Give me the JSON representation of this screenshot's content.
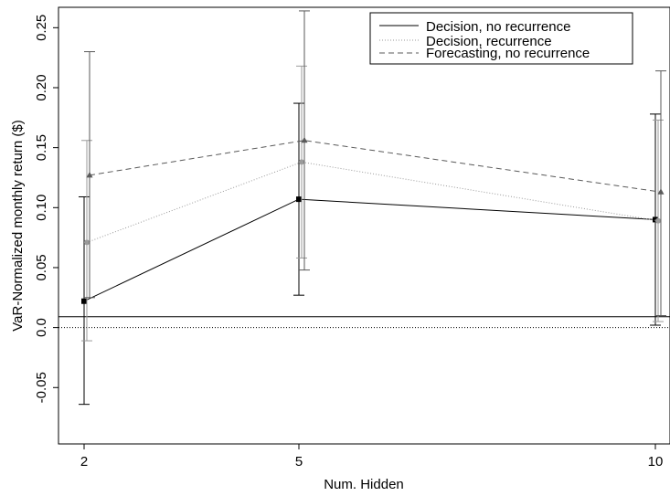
{
  "chart_data": {
    "type": "line",
    "xlabel": "Num. Hidden",
    "ylabel": "VaR-Normalized monthly return ($)",
    "x_ticks": [
      2,
      5,
      10
    ],
    "x_tick_labels": [
      "2",
      "5",
      "10"
    ],
    "y_ticks": [
      -0.05,
      0.0,
      0.05,
      0.1,
      0.15,
      0.2,
      0.25
    ],
    "y_tick_labels": [
      "-0.05",
      "0.0",
      "0.05",
      "0.10",
      "0.15",
      "0.20",
      "0.25"
    ],
    "ylim": [
      -0.097,
      0.267
    ],
    "x_positions": [
      2,
      5,
      10
    ],
    "reference_lines": [
      {
        "y": 0.0,
        "style": "dotted"
      },
      {
        "y": 0.009,
        "style": "solid"
      }
    ],
    "legend_position": "top-right",
    "series": [
      {
        "name": "Decision, no recurrence",
        "style": "solid",
        "color": "#000000",
        "marker": "square",
        "x_offset": 0,
        "values": [
          0.022,
          0.107,
          0.09
        ],
        "lower": [
          -0.064,
          0.027,
          0.002
        ],
        "upper": [
          0.109,
          0.187,
          0.178
        ]
      },
      {
        "name": "Decision, recurrence",
        "style": "dotted",
        "color": "#9a9a9a",
        "marker": "circle",
        "x_offset": 1,
        "values": [
          0.071,
          0.138,
          0.089
        ],
        "lower": [
          -0.011,
          0.058,
          0.005
        ],
        "upper": [
          0.156,
          0.218,
          0.173
        ]
      },
      {
        "name": "Forecasting, no recurrence",
        "style": "dashed",
        "color": "#5a5a5a",
        "marker": "triangle",
        "x_offset": 2,
        "values": [
          0.127,
          0.156,
          0.113
        ],
        "lower": [
          0.025,
          0.048,
          0.01
        ],
        "upper": [
          0.23,
          0.264,
          0.214
        ]
      }
    ]
  }
}
